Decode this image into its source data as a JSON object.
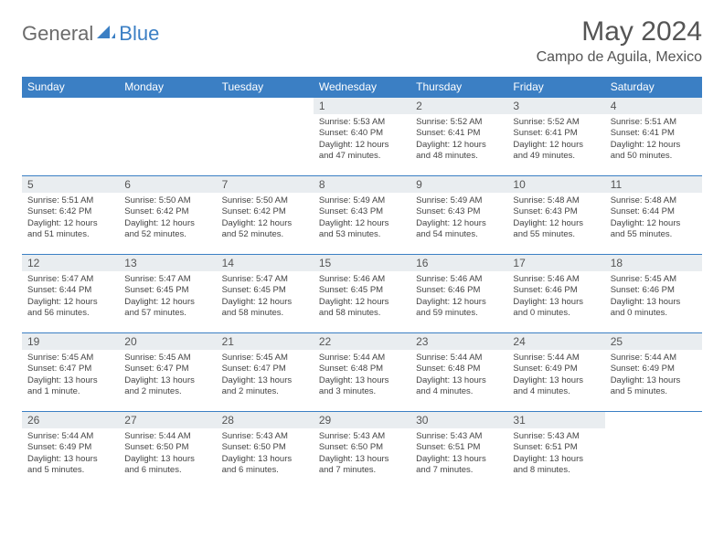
{
  "logo": {
    "part1": "General",
    "part2": "Blue"
  },
  "title": "May 2024",
  "location": "Campo de Aguila, Mexico",
  "colors": {
    "header_bg": "#3b7fc4",
    "header_text": "#ffffff",
    "daynum_bg": "#e9edf0",
    "border": "#3b7fc4",
    "title_color": "#555555",
    "body_text": "#444444"
  },
  "weekdays": [
    "Sunday",
    "Monday",
    "Tuesday",
    "Wednesday",
    "Thursday",
    "Friday",
    "Saturday"
  ],
  "weeks": [
    [
      {
        "n": "",
        "sr": "",
        "ss": "",
        "dl": ""
      },
      {
        "n": "",
        "sr": "",
        "ss": "",
        "dl": ""
      },
      {
        "n": "",
        "sr": "",
        "ss": "",
        "dl": ""
      },
      {
        "n": "1",
        "sr": "Sunrise: 5:53 AM",
        "ss": "Sunset: 6:40 PM",
        "dl": "Daylight: 12 hours and 47 minutes."
      },
      {
        "n": "2",
        "sr": "Sunrise: 5:52 AM",
        "ss": "Sunset: 6:41 PM",
        "dl": "Daylight: 12 hours and 48 minutes."
      },
      {
        "n": "3",
        "sr": "Sunrise: 5:52 AM",
        "ss": "Sunset: 6:41 PM",
        "dl": "Daylight: 12 hours and 49 minutes."
      },
      {
        "n": "4",
        "sr": "Sunrise: 5:51 AM",
        "ss": "Sunset: 6:41 PM",
        "dl": "Daylight: 12 hours and 50 minutes."
      }
    ],
    [
      {
        "n": "5",
        "sr": "Sunrise: 5:51 AM",
        "ss": "Sunset: 6:42 PM",
        "dl": "Daylight: 12 hours and 51 minutes."
      },
      {
        "n": "6",
        "sr": "Sunrise: 5:50 AM",
        "ss": "Sunset: 6:42 PM",
        "dl": "Daylight: 12 hours and 52 minutes."
      },
      {
        "n": "7",
        "sr": "Sunrise: 5:50 AM",
        "ss": "Sunset: 6:42 PM",
        "dl": "Daylight: 12 hours and 52 minutes."
      },
      {
        "n": "8",
        "sr": "Sunrise: 5:49 AM",
        "ss": "Sunset: 6:43 PM",
        "dl": "Daylight: 12 hours and 53 minutes."
      },
      {
        "n": "9",
        "sr": "Sunrise: 5:49 AM",
        "ss": "Sunset: 6:43 PM",
        "dl": "Daylight: 12 hours and 54 minutes."
      },
      {
        "n": "10",
        "sr": "Sunrise: 5:48 AM",
        "ss": "Sunset: 6:43 PM",
        "dl": "Daylight: 12 hours and 55 minutes."
      },
      {
        "n": "11",
        "sr": "Sunrise: 5:48 AM",
        "ss": "Sunset: 6:44 PM",
        "dl": "Daylight: 12 hours and 55 minutes."
      }
    ],
    [
      {
        "n": "12",
        "sr": "Sunrise: 5:47 AM",
        "ss": "Sunset: 6:44 PM",
        "dl": "Daylight: 12 hours and 56 minutes."
      },
      {
        "n": "13",
        "sr": "Sunrise: 5:47 AM",
        "ss": "Sunset: 6:45 PM",
        "dl": "Daylight: 12 hours and 57 minutes."
      },
      {
        "n": "14",
        "sr": "Sunrise: 5:47 AM",
        "ss": "Sunset: 6:45 PM",
        "dl": "Daylight: 12 hours and 58 minutes."
      },
      {
        "n": "15",
        "sr": "Sunrise: 5:46 AM",
        "ss": "Sunset: 6:45 PM",
        "dl": "Daylight: 12 hours and 58 minutes."
      },
      {
        "n": "16",
        "sr": "Sunrise: 5:46 AM",
        "ss": "Sunset: 6:46 PM",
        "dl": "Daylight: 12 hours and 59 minutes."
      },
      {
        "n": "17",
        "sr": "Sunrise: 5:46 AM",
        "ss": "Sunset: 6:46 PM",
        "dl": "Daylight: 13 hours and 0 minutes."
      },
      {
        "n": "18",
        "sr": "Sunrise: 5:45 AM",
        "ss": "Sunset: 6:46 PM",
        "dl": "Daylight: 13 hours and 0 minutes."
      }
    ],
    [
      {
        "n": "19",
        "sr": "Sunrise: 5:45 AM",
        "ss": "Sunset: 6:47 PM",
        "dl": "Daylight: 13 hours and 1 minute."
      },
      {
        "n": "20",
        "sr": "Sunrise: 5:45 AM",
        "ss": "Sunset: 6:47 PM",
        "dl": "Daylight: 13 hours and 2 minutes."
      },
      {
        "n": "21",
        "sr": "Sunrise: 5:45 AM",
        "ss": "Sunset: 6:47 PM",
        "dl": "Daylight: 13 hours and 2 minutes."
      },
      {
        "n": "22",
        "sr": "Sunrise: 5:44 AM",
        "ss": "Sunset: 6:48 PM",
        "dl": "Daylight: 13 hours and 3 minutes."
      },
      {
        "n": "23",
        "sr": "Sunrise: 5:44 AM",
        "ss": "Sunset: 6:48 PM",
        "dl": "Daylight: 13 hours and 4 minutes."
      },
      {
        "n": "24",
        "sr": "Sunrise: 5:44 AM",
        "ss": "Sunset: 6:49 PM",
        "dl": "Daylight: 13 hours and 4 minutes."
      },
      {
        "n": "25",
        "sr": "Sunrise: 5:44 AM",
        "ss": "Sunset: 6:49 PM",
        "dl": "Daylight: 13 hours and 5 minutes."
      }
    ],
    [
      {
        "n": "26",
        "sr": "Sunrise: 5:44 AM",
        "ss": "Sunset: 6:49 PM",
        "dl": "Daylight: 13 hours and 5 minutes."
      },
      {
        "n": "27",
        "sr": "Sunrise: 5:44 AM",
        "ss": "Sunset: 6:50 PM",
        "dl": "Daylight: 13 hours and 6 minutes."
      },
      {
        "n": "28",
        "sr": "Sunrise: 5:43 AM",
        "ss": "Sunset: 6:50 PM",
        "dl": "Daylight: 13 hours and 6 minutes."
      },
      {
        "n": "29",
        "sr": "Sunrise: 5:43 AM",
        "ss": "Sunset: 6:50 PM",
        "dl": "Daylight: 13 hours and 7 minutes."
      },
      {
        "n": "30",
        "sr": "Sunrise: 5:43 AM",
        "ss": "Sunset: 6:51 PM",
        "dl": "Daylight: 13 hours and 7 minutes."
      },
      {
        "n": "31",
        "sr": "Sunrise: 5:43 AM",
        "ss": "Sunset: 6:51 PM",
        "dl": "Daylight: 13 hours and 8 minutes."
      },
      {
        "n": "",
        "sr": "",
        "ss": "",
        "dl": ""
      }
    ]
  ]
}
